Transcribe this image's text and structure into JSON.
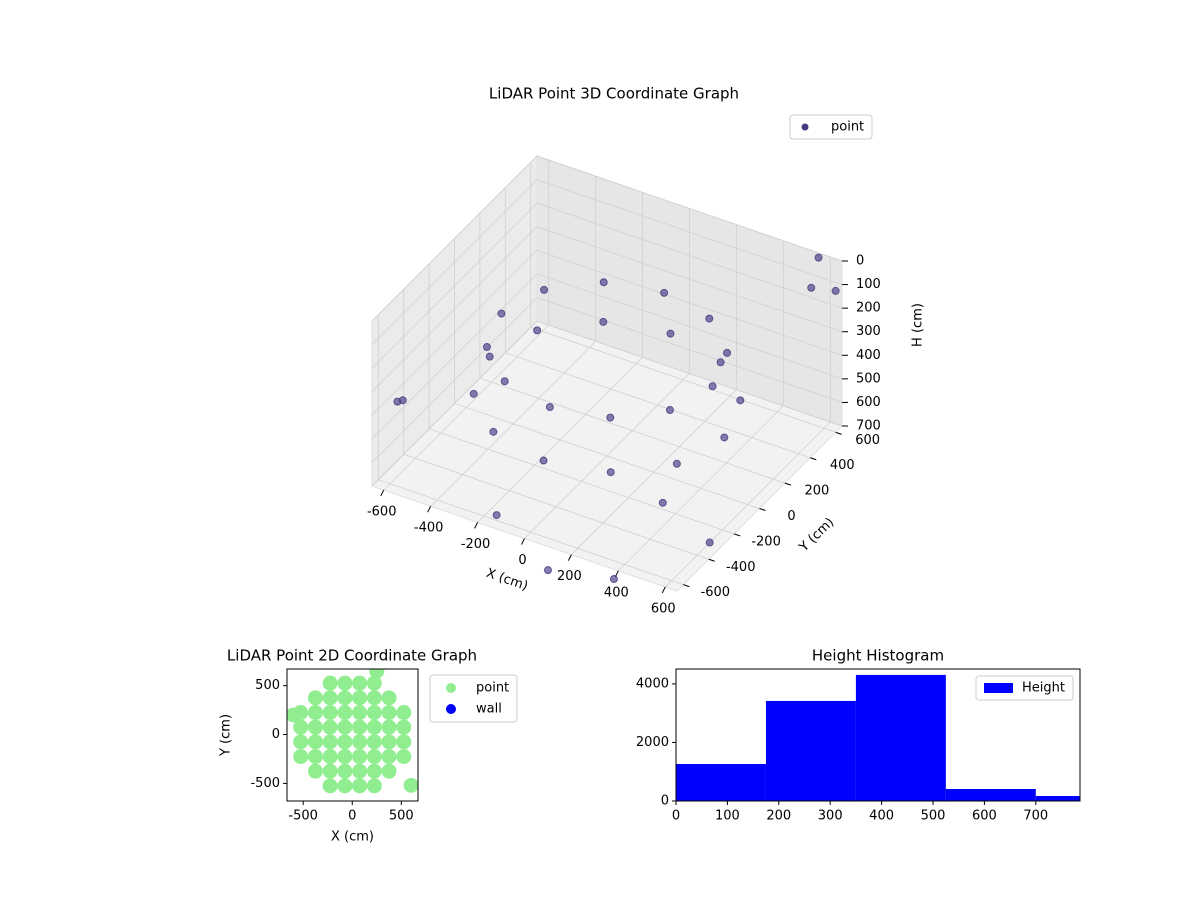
{
  "chart_data": [
    {
      "type": "scatter3d",
      "title": "LiDAR Point 3D Coordinate Graph",
      "xlabel": "X (cm)",
      "ylabel": "Y (cm)",
      "zlabel": "H (cm)",
      "xlim": [
        -650,
        650
      ],
      "ylim": [
        -650,
        650
      ],
      "zlim": [
        0,
        700
      ],
      "z_inverted": true,
      "xticks": [
        -600,
        -400,
        -200,
        0,
        200,
        400,
        600
      ],
      "yticks": [
        -600,
        -400,
        -200,
        0,
        200,
        400,
        600
      ],
      "zticks": [
        0,
        100,
        200,
        300,
        400,
        500,
        600,
        700
      ],
      "grid": true,
      "legend": "upper right",
      "series": [
        {
          "name": "point",
          "color": "#443983",
          "x": [
            450,
            390,
            225,
            0,
            -225,
            -390,
            -450,
            -390,
            -225,
            0,
            225,
            390,
            500,
            433,
            250,
            0,
            -250,
            -433,
            -500,
            -433,
            -250,
            0,
            250,
            433,
            600,
            650,
            550,
            -600,
            -650,
            400,
            -200,
            100,
            300,
            600
          ],
          "y": [
            0,
            225,
            390,
            450,
            390,
            225,
            0,
            -225,
            -390,
            -450,
            -390,
            -225,
            0,
            250,
            433,
            500,
            433,
            250,
            0,
            -250,
            -433,
            -500,
            -433,
            -250,
            500,
            600,
            650,
            -500,
            -450,
            -300,
            -500,
            -650,
            -500,
            -300
          ],
          "z": [
            250,
            250,
            250,
            250,
            250,
            250,
            250,
            250,
            250,
            250,
            250,
            250,
            450,
            450,
            450,
            450,
            450,
            450,
            450,
            450,
            450,
            450,
            450,
            450,
            50,
            100,
            20,
            400,
            450,
            600,
            750,
            800,
            850,
            700
          ]
        }
      ]
    },
    {
      "type": "scatter",
      "title": "LiDAR Point 2D Coordinate Graph",
      "xlabel": "X (cm)",
      "ylabel": "Y (cm)",
      "xlim": [
        -665,
        670
      ],
      "ylim": [
        -680,
        670
      ],
      "xticks": [
        -500,
        0,
        500
      ],
      "yticks": [
        -500,
        0,
        500
      ],
      "legend": "outside right",
      "series": [
        {
          "name": "point",
          "color": "#90ee90",
          "x": [
            -525,
            -525,
            -525,
            -525,
            -375,
            -375,
            -375,
            -375,
            -375,
            -375,
            -225,
            -225,
            -225,
            -225,
            -225,
            -225,
            -225,
            -225,
            -75,
            -75,
            -75,
            -75,
            -75,
            -75,
            -75,
            -75,
            75,
            75,
            75,
            75,
            75,
            75,
            75,
            75,
            225,
            225,
            225,
            225,
            225,
            225,
            225,
            225,
            375,
            375,
            375,
            375,
            375,
            375,
            525,
            525,
            525,
            525,
            -600,
            600,
            250
          ],
          "y": [
            -225,
            -75,
            75,
            225,
            -375,
            -225,
            -75,
            75,
            225,
            375,
            -525,
            -375,
            -225,
            -75,
            75,
            225,
            375,
            525,
            -525,
            -375,
            -225,
            -75,
            75,
            225,
            375,
            525,
            -525,
            -375,
            -225,
            -75,
            75,
            225,
            375,
            525,
            -525,
            -375,
            -225,
            -75,
            75,
            225,
            375,
            525,
            -375,
            -225,
            -75,
            75,
            225,
            375,
            -225,
            -75,
            75,
            225,
            200,
            -520,
            650
          ]
        },
        {
          "name": "wall",
          "color": "#0000ff",
          "x": [],
          "y": []
        }
      ]
    },
    {
      "type": "hist",
      "title": "Height Histogram",
      "label": "Height",
      "color": "#0000ff",
      "bins": [
        0,
        175,
        350,
        525,
        700,
        875
      ],
      "counts": [
        1265,
        3419,
        4308,
        410,
        171
      ],
      "xlim": [
        0,
        786
      ],
      "ylim": [
        0,
        4510
      ],
      "xticks": [
        0,
        100,
        200,
        300,
        400,
        500,
        600,
        700
      ],
      "yticks": [
        0,
        2000,
        4000
      ],
      "legend": "upper right"
    }
  ]
}
